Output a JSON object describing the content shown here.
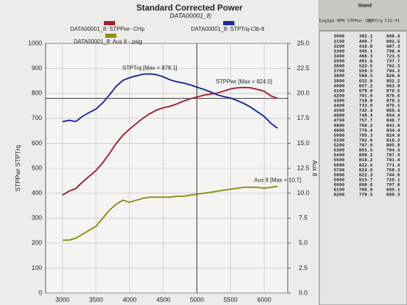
{
  "chart_data": {
    "type": "line",
    "title": "Standard Corrected Power",
    "subtitle": "DATA00001_8;",
    "ylabel": "STPPwr  STPTrq",
    "y2label": "Aux 8",
    "x": [
      3000,
      3100,
      3200,
      3300,
      3400,
      3500,
      3600,
      3700,
      3800,
      3900,
      4000,
      4100,
      4200,
      4300,
      4400,
      4500,
      4600,
      4700,
      4800,
      4900,
      5000,
      5100,
      5200,
      5300,
      5400,
      5500,
      5600,
      5700,
      5800,
      5900,
      6000,
      6100,
      6200
    ],
    "xlim": [
      2750,
      6350
    ],
    "xticks": [
      3000,
      3500,
      4000,
      4500,
      5000,
      5500,
      6000
    ],
    "ylim": [
      0,
      1000
    ],
    "yticks": [
      0,
      100,
      200,
      300,
      400,
      500,
      600,
      700,
      800,
      900,
      1000
    ],
    "y2lim": [
      0,
      25
    ],
    "y2ticks": [
      {
        "value": 0,
        "label": "0.0"
      },
      2.5,
      {
        "value": 5,
        "label": "5.0"
      },
      7.5,
      {
        "value": 10,
        "label": "10.0"
      },
      12.5,
      {
        "value": 15,
        "label": "15.0"
      },
      17.5,
      {
        "value": 20,
        "label": "20.0"
      },
      22.5,
      {
        "value": 25,
        "label": "25.0"
      }
    ],
    "grid": true,
    "cursor_x": 5000,
    "cursor_y": 780,
    "series": [
      {
        "name": "DATA00001_8: STPPwr- CHp",
        "color": "#a3202f",
        "annotation": "STPPwr [Max = 824.0]",
        "values": [
          392.1,
          408.7,
          418.8,
          445.1,
          468.3,
          491.6,
          522.5,
          559.5,
          599.5,
          632.8,
          657.2,
          679.6,
          701.0,
          718.9,
          733.0,
          742.4,
          748.4,
          757.7,
          769.2,
          778.4,
          785.3,
          792.6,
          797.0,
          801.5,
          809.2,
          818.2,
          822.5,
          824.0,
          822.3,
          815.7,
          808.6,
          789.9,
          779.5
        ]
      },
      {
        "name": "DATA00001_8: STPTrq-Clb-ft",
        "color": "#1c2b9c",
        "annotation": "STPTrq [Max = 878.1]",
        "values": [
          686.4,
          692.5,
          687.3,
          708.4,
          723.5,
          737.7,
          762.3,
          794.2,
          828.6,
          852.2,
          863.0,
          870.5,
          876.6,
          878.1,
          875.1,
          866.4,
          854.4,
          846.7,
          841.6,
          834.4,
          824.9,
          816.2,
          805.9,
          794.3,
          787.0,
          781.4,
          771.4,
          759.3,
          744.6,
          726.1,
          707.8,
          680.1,
          660.3
        ]
      },
      {
        "name": "DATA00001_8: Aux 8 - psig",
        "color": "#8f8f12",
        "axis": "y2",
        "annotation": "Aux 8 [Max = 10.7]",
        "values": [
          5.3,
          5.3,
          5.5,
          5.9,
          6.3,
          6.7,
          7.5,
          8.3,
          8.9,
          9.3,
          9.1,
          9.3,
          9.5,
          9.6,
          9.6,
          9.6,
          9.6,
          9.7,
          9.7,
          9.8,
          9.9,
          10.0,
          10.1,
          10.2,
          10.3,
          10.4,
          10.5,
          10.6,
          10.6,
          10.6,
          10.5,
          10.6,
          10.7
        ]
      }
    ]
  },
  "table": {
    "header": "Stand",
    "columns": [
      "EngSpd RPM",
      "STPPwr CHp",
      "STPTrq Clb-ft"
    ],
    "rows": [
      [
        "3000",
        "392.1",
        "686.4"
      ],
      [
        "3100",
        "408.7",
        "692.5"
      ],
      [
        "3200",
        "418.8",
        "687.3"
      ],
      [
        "3300",
        "445.1",
        "708.4"
      ],
      [
        "3400",
        "468.3",
        "723.5"
      ],
      [
        "3500",
        "491.6",
        "737.7"
      ],
      [
        "3600",
        "522.5",
        "762.3"
      ],
      [
        "3700",
        "559.5",
        "794.2"
      ],
      [
        "3800",
        "599.5",
        "828.6"
      ],
      [
        "3900",
        "632.8",
        "852.2"
      ],
      [
        "4000",
        "657.2",
        "863.0"
      ],
      [
        "4100",
        "679.6",
        "870.5"
      ],
      [
        "4200",
        "701.0",
        "876.6"
      ],
      [
        "4300",
        "718.9",
        "878.1"
      ],
      [
        "4400",
        "733.0",
        "875.1"
      ],
      [
        "4500",
        "742.4",
        "866.4"
      ],
      [
        "4600",
        "748.4",
        "854.4"
      ],
      [
        "4700",
        "757.7",
        "846.7"
      ],
      [
        "4800",
        "769.2",
        "841.6"
      ],
      [
        "4900",
        "778.4",
        "834.4"
      ],
      [
        "5000",
        "785.3",
        "824.9"
      ],
      [
        "5100",
        "792.6",
        "816.2"
      ],
      [
        "5200",
        "797.0",
        "805.9"
      ],
      [
        "5300",
        "801.5",
        "794.3"
      ],
      [
        "5400",
        "809.2",
        "787.0"
      ],
      [
        "5500",
        "818.2",
        "781.4"
      ],
      [
        "5600",
        "822.5",
        "771.4"
      ],
      [
        "5700",
        "824.0",
        "759.3"
      ],
      [
        "5800",
        "822.3",
        "744.6"
      ],
      [
        "5900",
        "815.7",
        "726.1"
      ],
      [
        "6000",
        "808.6",
        "707.8"
      ],
      [
        "6100",
        "789.9",
        "680.1"
      ],
      [
        "6200",
        "779.5",
        "660.3"
      ]
    ]
  }
}
